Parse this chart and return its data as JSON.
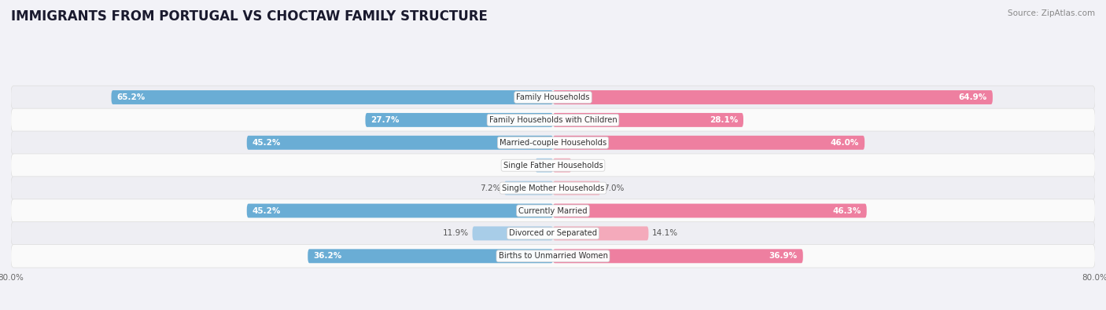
{
  "title": "IMMIGRANTS FROM PORTUGAL VS CHOCTAW FAMILY STRUCTURE",
  "source": "Source: ZipAtlas.com",
  "categories": [
    "Family Households",
    "Family Households with Children",
    "Married-couple Households",
    "Single Father Households",
    "Single Mother Households",
    "Currently Married",
    "Divorced or Separated",
    "Births to Unmarried Women"
  ],
  "portugal_values": [
    65.2,
    27.7,
    45.2,
    2.6,
    7.2,
    45.2,
    11.9,
    36.2
  ],
  "choctaw_values": [
    64.9,
    28.1,
    46.0,
    2.7,
    7.0,
    46.3,
    14.1,
    36.9
  ],
  "max_value": 80.0,
  "portugal_color_dark": "#6AADD5",
  "portugal_color_light": "#A8CDE8",
  "choctaw_color_dark": "#EE7FA0",
  "choctaw_color_light": "#F4AABB",
  "background_color": "#F2F2F7",
  "row_bg_even": "#EEEEF3",
  "row_bg_odd": "#FAFAFA",
  "bar_height": 0.62,
  "threshold_dark": 15.0,
  "title_fontsize": 12,
  "label_fontsize": 7.5,
  "tick_fontsize": 7.5,
  "legend_fontsize": 8.5,
  "source_fontsize": 7.5
}
